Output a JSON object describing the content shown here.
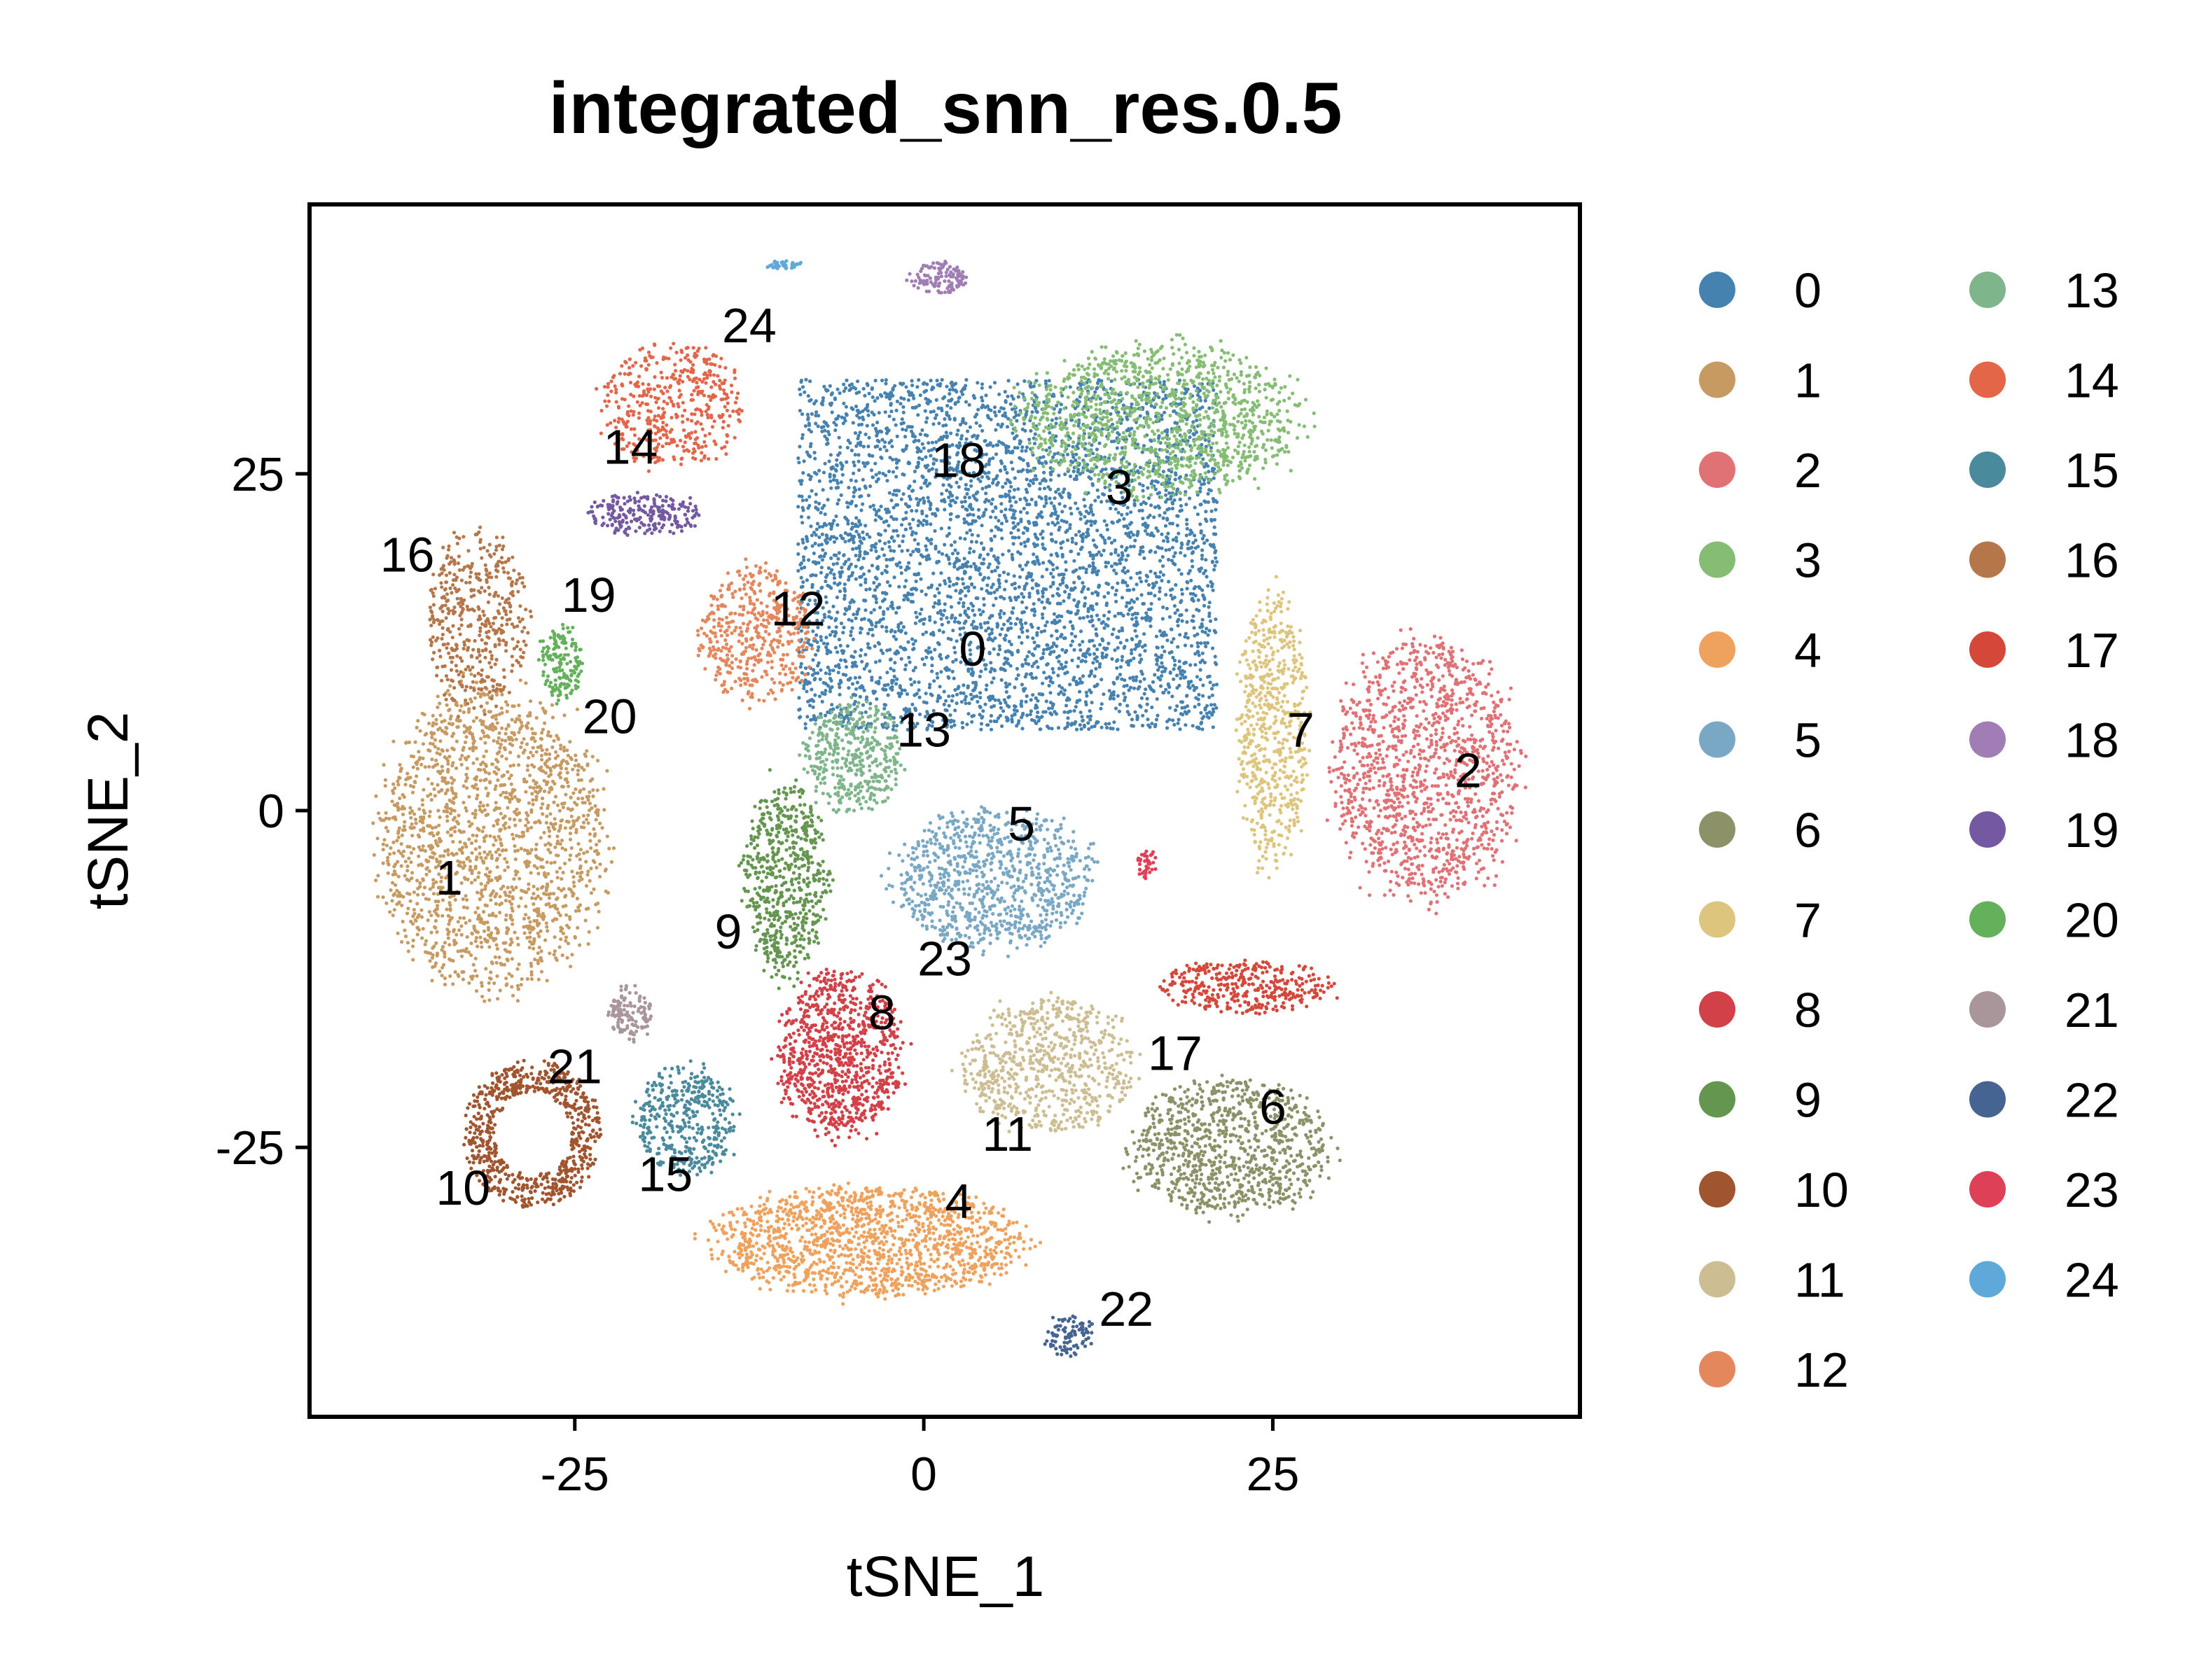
{
  "chart_data": {
    "type": "scatter",
    "title": "integrated_snn_res.0.5",
    "xlabel": "tSNE_1",
    "ylabel": "tSNE_2",
    "xlim": [
      -44,
      47
    ],
    "ylim": [
      -45,
      45
    ],
    "xticks": [
      -25,
      0,
      25
    ],
    "yticks": [
      -25,
      0,
      25
    ],
    "xtick_labels": [
      "-25",
      "0",
      "25"
    ],
    "ytick_labels": [
      "-25",
      "0",
      "25"
    ],
    "grid": false,
    "legend_position": "right",
    "legend_columns": 2,
    "clusters": [
      {
        "name": "0",
        "color": "#4682B0",
        "label_x": 3.5,
        "label_y": 12,
        "shape": "box",
        "cx": 6,
        "cy": 19,
        "sx": 15,
        "sy": 13,
        "count": 4200
      },
      {
        "name": "1",
        "color": "#C79A62",
        "label_x": -34,
        "label_y": -5,
        "shape": "ellipse",
        "cx": -31,
        "cy": -2,
        "sx": 8,
        "sy": 11,
        "count": 1700
      },
      {
        "name": "2",
        "color": "#E07175",
        "label_x": 39,
        "label_y": 3,
        "shape": "ellipse",
        "cx": 36,
        "cy": 3,
        "sx": 6.5,
        "sy": 9.5,
        "count": 1300
      },
      {
        "name": "3",
        "color": "#85BD74",
        "label_x": 14,
        "label_y": 24,
        "shape": "ellipse",
        "cx": 17,
        "cy": 29,
        "sx": 10,
        "sy": 5.5,
        "count": 1200
      },
      {
        "name": "4",
        "color": "#EFA25E",
        "label_x": 2.5,
        "label_y": -29,
        "shape": "ellipse",
        "cx": -4,
        "cy": -32,
        "sx": 11,
        "sy": 4,
        "count": 1400
      },
      {
        "name": "5",
        "color": "#79A8C5",
        "label_x": 7,
        "label_y": -1,
        "shape": "ellipse",
        "cx": 5,
        "cy": -5,
        "sx": 7,
        "sy": 5,
        "count": 900
      },
      {
        "name": "6",
        "color": "#8C9167",
        "label_x": 25,
        "label_y": -22,
        "shape": "ellipse",
        "cx": 22,
        "cy": -25,
        "sx": 7,
        "sy": 5,
        "count": 900
      },
      {
        "name": "7",
        "color": "#DEC57E",
        "label_x": 27,
        "label_y": 6,
        "shape": "ellipse",
        "cx": 25,
        "cy": 6,
        "sx": 2.5,
        "sy": 10,
        "count": 600
      },
      {
        "name": "8",
        "color": "#D24148",
        "label_x": -3,
        "label_y": -15,
        "shape": "ellipse",
        "cx": -6,
        "cy": -18,
        "sx": 4.5,
        "sy": 6,
        "count": 900
      },
      {
        "name": "9",
        "color": "#64964F",
        "label_x": -14,
        "label_y": -9,
        "shape": "ellipse",
        "cx": -10,
        "cy": -5,
        "sx": 3,
        "sy": 7,
        "count": 600
      },
      {
        "name": "10",
        "color": "#A1552F",
        "label_x": -33,
        "label_y": -28,
        "shape": "ring",
        "cx": -28,
        "cy": -24,
        "sx": 5,
        "sy": 5.5,
        "count": 700
      },
      {
        "name": "11",
        "color": "#CDBD92",
        "label_x": 6,
        "label_y": -24,
        "shape": "ellipse",
        "cx": 9,
        "cy": -19,
        "sx": 6,
        "sy": 5,
        "count": 700
      },
      {
        "name": "12",
        "color": "#E5875C",
        "label_x": -9,
        "label_y": 15,
        "shape": "ellipse",
        "cx": -12,
        "cy": 13,
        "sx": 4,
        "sy": 5,
        "count": 450
      },
      {
        "name": "13",
        "color": "#7EB58B",
        "label_x": 0,
        "label_y": 6,
        "shape": "ellipse",
        "cx": -5,
        "cy": 4,
        "sx": 3.5,
        "sy": 4,
        "count": 400
      },
      {
        "name": "14",
        "color": "#E36649",
        "label_x": -21,
        "label_y": 27,
        "shape": "ellipse",
        "cx": -18,
        "cy": 30,
        "sx": 5,
        "sy": 4.5,
        "count": 450
      },
      {
        "name": "15",
        "color": "#4A8A9D",
        "label_x": -18.5,
        "label_y": -27,
        "shape": "ellipse",
        "cx": -17,
        "cy": -23,
        "sx": 3.5,
        "sy": 4,
        "count": 400
      },
      {
        "name": "16",
        "color": "#B5774A",
        "label_x": -37,
        "label_y": 19,
        "shape": "ellipse",
        "cx": -32,
        "cy": 14,
        "sx": 3.5,
        "sy": 6.5,
        "count": 450
      },
      {
        "name": "17",
        "color": "#D44739",
        "label_x": 18,
        "label_y": -18,
        "shape": "ellipse",
        "cx": 23,
        "cy": -13,
        "sx": 6,
        "sy": 2,
        "count": 350
      },
      {
        "name": "18",
        "color": "#A07EB5",
        "label_x": 2.5,
        "label_y": 26,
        "shape": "ellipse",
        "cx": 1,
        "cy": 39.5,
        "sx": 2,
        "sy": 1.2,
        "count": 120
      },
      {
        "name": "19",
        "color": "#7458A1",
        "label_x": -24,
        "label_y": 16,
        "shape": "ellipse",
        "cx": -20,
        "cy": 22,
        "sx": 4,
        "sy": 1.5,
        "count": 220
      },
      {
        "name": "20",
        "color": "#64B15B",
        "label_x": -22.5,
        "label_y": 7,
        "shape": "ellipse",
        "cx": -26,
        "cy": 11,
        "sx": 1.5,
        "sy": 3,
        "count": 160
      },
      {
        "name": "21",
        "color": "#A8969A",
        "label_x": -25,
        "label_y": -19,
        "shape": "ellipse",
        "cx": -21,
        "cy": -15,
        "sx": 1.5,
        "sy": 2,
        "count": 120
      },
      {
        "name": "22",
        "color": "#456491",
        "label_x": 14.5,
        "label_y": -37,
        "shape": "ellipse",
        "cx": 10.5,
        "cy": -39,
        "sx": 1.8,
        "sy": 1.5,
        "count": 90
      },
      {
        "name": "23",
        "color": "#DE4058",
        "label_x": 1.5,
        "label_y": -11,
        "shape": "ellipse",
        "cx": 16,
        "cy": -4,
        "sx": 0.6,
        "sy": 1.2,
        "count": 40
      },
      {
        "name": "24",
        "color": "#5EA9D9",
        "label_x": -12.5,
        "label_y": 36,
        "shape": "ellipse",
        "cx": -10,
        "cy": 40.5,
        "sx": 1.3,
        "sy": 0.3,
        "count": 40
      }
    ]
  }
}
